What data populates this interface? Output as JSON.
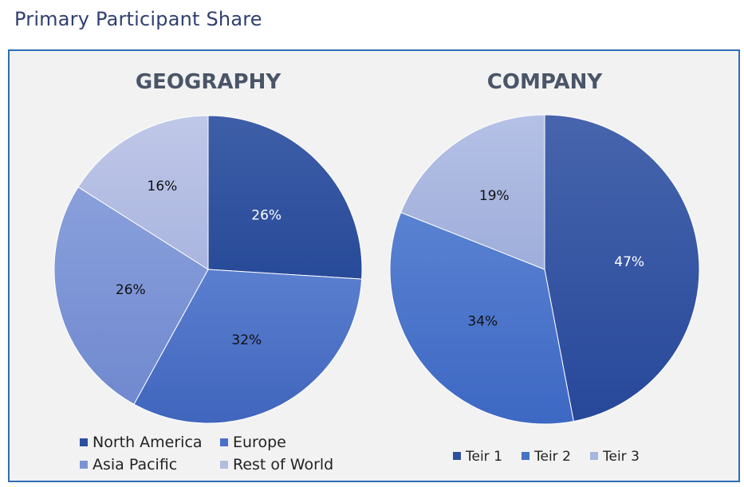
{
  "page_title": "Primary Participant Share",
  "chart_data": [
    {
      "type": "pie",
      "title": "GEOGRAPHY",
      "categories": [
        "North America",
        "Europe",
        "Asia Pacific",
        "Rest of World"
      ],
      "values": [
        26,
        32,
        26,
        16
      ],
      "labels": [
        "26%",
        "32%",
        "26%",
        "16%"
      ],
      "colors": [
        "#2c4f9e",
        "#4a70c7",
        "#7b93d6",
        "#b2bde2"
      ],
      "label_colors": [
        "#ffffff",
        "#111111",
        "#111111",
        "#111111"
      ],
      "legend_position": "bottom"
    },
    {
      "type": "pie",
      "title": "COMPANY",
      "categories": [
        "Teir 1",
        "Teir 2",
        "Teir 3"
      ],
      "values": [
        47,
        34,
        19
      ],
      "labels": [
        "47%",
        "34%",
        "19%"
      ],
      "colors": [
        "#2f4f9f",
        "#4472c4",
        "#a8b6df"
      ],
      "label_colors": [
        "#ffffff",
        "#111111",
        "#111111"
      ],
      "legend_position": "bottom"
    }
  ]
}
